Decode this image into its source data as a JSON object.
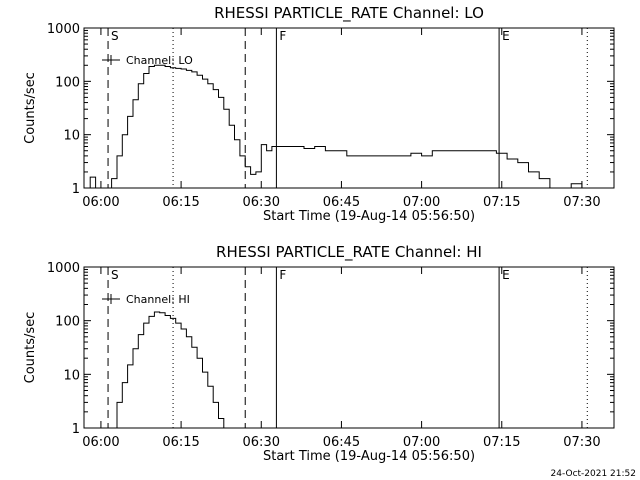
{
  "timestamp": "24-Oct-2021 21:52",
  "chart_data": [
    {
      "type": "line",
      "title": "RHESSI PARTICLE_RATE Channel: LO",
      "xlabel": "Start Time (19-Aug-14 05:56:50)",
      "ylabel": "Counts/sec",
      "yscale": "log",
      "ylim": [
        1,
        1000
      ],
      "xlim": [
        "05:56:50",
        "07:36:00"
      ],
      "x_ticks": [
        "06:00",
        "06:15",
        "06:30",
        "06:45",
        "07:00",
        "07:15",
        "07:30"
      ],
      "y_ticks": [
        "1",
        "10",
        "100",
        "1000"
      ],
      "legend": "Channel: LO",
      "legend_position": "top-left",
      "markers": [
        {
          "label": "S",
          "time": "06:01:20",
          "style": "dashed"
        },
        {
          "label": "",
          "time": "06:13:30",
          "style": "dotted"
        },
        {
          "label": "",
          "time": "06:27:00",
          "style": "dashed"
        },
        {
          "label": "F",
          "time": "06:32:50",
          "style": "solid"
        },
        {
          "label": "E",
          "time": "07:14:30",
          "style": "solid"
        },
        {
          "label": "",
          "time": "07:31:00",
          "style": "dotted"
        }
      ],
      "series": [
        {
          "x": [
            "05:57:00",
            "05:58:00",
            "05:59:00",
            "06:00:00",
            "06:01:00",
            "06:02:00",
            "06:03:00",
            "06:04:00",
            "06:05:00",
            "06:06:00",
            "06:07:00",
            "06:08:00",
            "06:09:00",
            "06:10:00",
            "06:11:00",
            "06:12:00",
            "06:13:00",
            "06:14:00",
            "06:15:00",
            "06:16:00",
            "06:17:00",
            "06:18:00",
            "06:19:00",
            "06:20:00",
            "06:21:00",
            "06:22:00",
            "06:23:00",
            "06:24:00",
            "06:25:00",
            "06:26:00",
            "06:27:00",
            "06:28:00",
            "06:29:00",
            "06:30:00",
            "06:31:00",
            "06:32:00",
            "06:33:00",
            "06:35:00",
            "06:38:00",
            "06:40:00",
            "06:42:00",
            "06:44:00",
            "06:46:00",
            "06:48:00",
            "06:50:00",
            "06:52:00",
            "06:54:00",
            "06:56:00",
            "06:58:00",
            "07:00:00",
            "07:02:00",
            "07:04:00",
            "07:06:00",
            "07:08:00",
            "07:10:00",
            "07:12:00",
            "07:14:00",
            "07:16:00",
            "07:18:00",
            "07:20:00",
            "07:22:00",
            "07:24:00",
            "07:26:00",
            "07:28:00",
            "07:30:00"
          ],
          "values": [
            1,
            1.6,
            1,
            1,
            1,
            1.5,
            4,
            10,
            22,
            45,
            90,
            140,
            190,
            200,
            200,
            190,
            180,
            175,
            170,
            160,
            150,
            130,
            110,
            90,
            70,
            50,
            30,
            15,
            8,
            4,
            2.5,
            1.8,
            2,
            6.5,
            5,
            6,
            6,
            6,
            5.5,
            6,
            5,
            5,
            4,
            4,
            4,
            4,
            4,
            4,
            4.5,
            4,
            5,
            5,
            5,
            5,
            5,
            5,
            4.5,
            3.5,
            3,
            2,
            1.5,
            1,
            1,
            1.2,
            1
          ]
        }
      ]
    },
    {
      "type": "line",
      "title": "RHESSI PARTICLE_RATE Channel: HI",
      "xlabel": "Start Time (19-Aug-14 05:56:50)",
      "ylabel": "Counts/sec",
      "yscale": "log",
      "ylim": [
        1,
        1000
      ],
      "xlim": [
        "05:56:50",
        "07:36:00"
      ],
      "x_ticks": [
        "06:00",
        "06:15",
        "06:30",
        "06:45",
        "07:00",
        "07:15",
        "07:30"
      ],
      "y_ticks": [
        "1",
        "10",
        "100",
        "1000"
      ],
      "legend": "Channel: HI",
      "legend_position": "top-left",
      "markers": [
        {
          "label": "S",
          "time": "06:01:20",
          "style": "dashed"
        },
        {
          "label": "",
          "time": "06:13:30",
          "style": "dotted"
        },
        {
          "label": "",
          "time": "06:27:00",
          "style": "dashed"
        },
        {
          "label": "F",
          "time": "06:32:50",
          "style": "solid"
        },
        {
          "label": "E",
          "time": "07:14:30",
          "style": "solid"
        },
        {
          "label": "",
          "time": "07:31:00",
          "style": "dotted"
        }
      ],
      "series": [
        {
          "x": [
            "06:02:00",
            "06:03:00",
            "06:04:00",
            "06:05:00",
            "06:06:00",
            "06:07:00",
            "06:08:00",
            "06:09:00",
            "06:10:00",
            "06:11:00",
            "06:12:00",
            "06:13:00",
            "06:14:00",
            "06:15:00",
            "06:16:00",
            "06:17:00",
            "06:18:00",
            "06:19:00",
            "06:20:00",
            "06:21:00",
            "06:22:00",
            "06:23:00"
          ],
          "values": [
            1,
            3,
            7,
            15,
            30,
            55,
            90,
            120,
            145,
            140,
            125,
            110,
            90,
            70,
            50,
            32,
            20,
            11,
            6,
            3,
            1.5,
            1
          ]
        }
      ]
    }
  ]
}
